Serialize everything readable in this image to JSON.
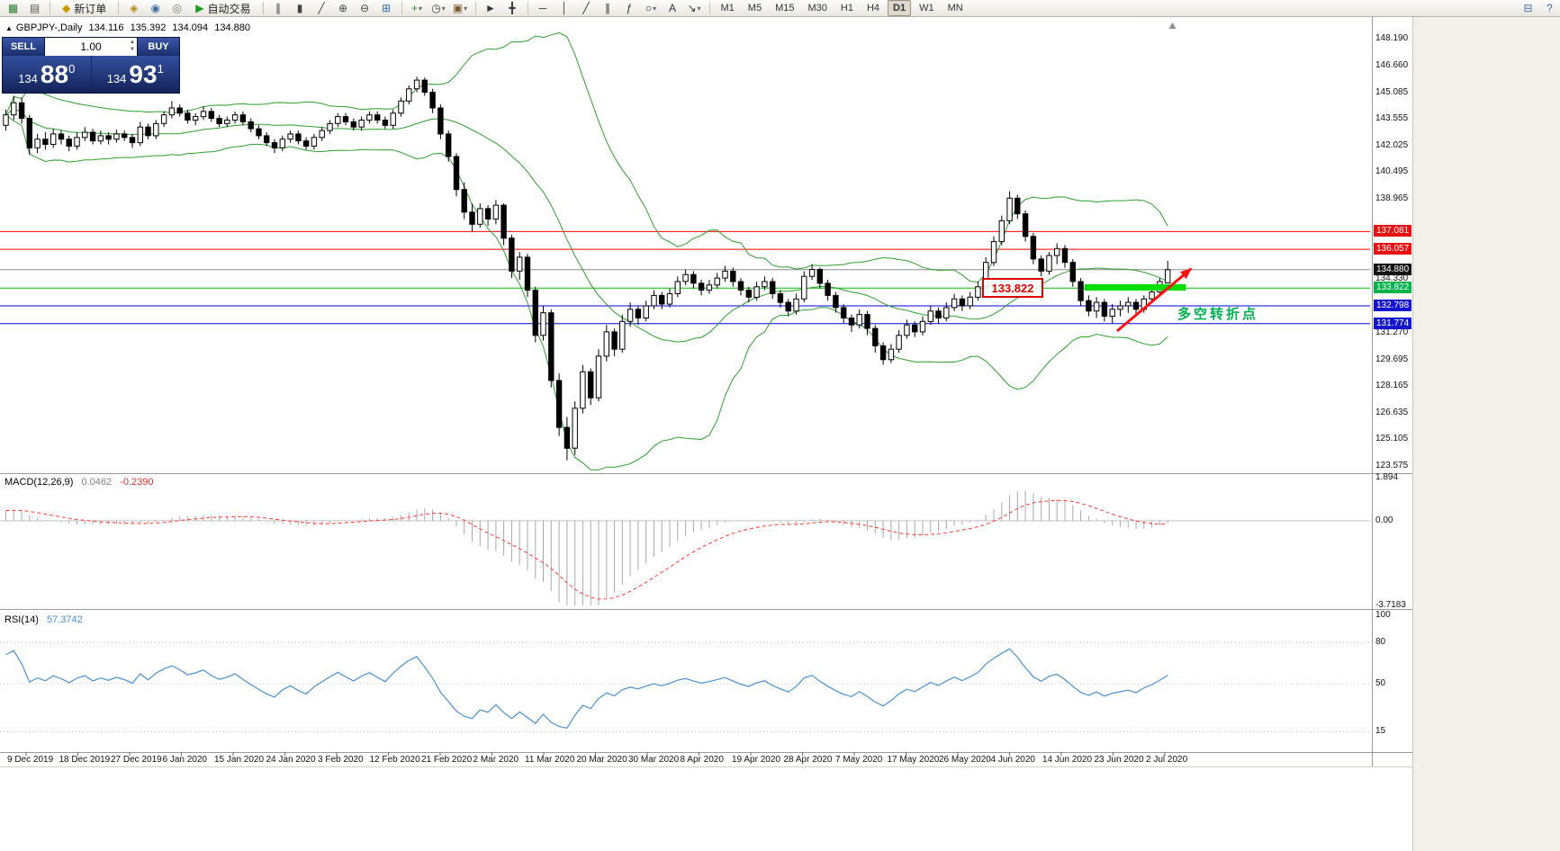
{
  "toolbar": {
    "items": [
      {
        "t": "icon",
        "name": "new-chart",
        "g": "▦",
        "c": "#2b7a2b"
      },
      {
        "t": "icon",
        "name": "profiles",
        "g": "▤",
        "c": "#555555"
      },
      {
        "t": "sep"
      },
      {
        "t": "button",
        "name": "new-order",
        "label": "新订单",
        "g": "◆",
        "c": "#c99700"
      },
      {
        "t": "sep"
      },
      {
        "t": "icon",
        "name": "metaeditor",
        "g": "◈",
        "c": "#b8860b"
      },
      {
        "t": "icon",
        "name": "market",
        "g": "◉",
        "c": "#3a6ea5"
      },
      {
        "t": "icon",
        "name": "alerts",
        "g": "◎",
        "c": "#777777"
      },
      {
        "t": "button",
        "name": "autotrading",
        "label": "自动交易",
        "g": "▶",
        "c": "#18a018"
      },
      {
        "t": "sep"
      },
      {
        "t": "icon",
        "name": "bar-chart-mode",
        "g": "∥",
        "c": "#444444"
      },
      {
        "t": "icon",
        "name": "candlestick-mode",
        "g": "▮",
        "c": "#444444"
      },
      {
        "t": "icon",
        "name": "line-chart-mode",
        "g": "╱",
        "c": "#444444"
      },
      {
        "t": "icon",
        "name": "zoom-in",
        "g": "⊕",
        "c": "#444444"
      },
      {
        "t": "icon",
        "name": "zoom-out",
        "g": "⊖",
        "c": "#444444"
      },
      {
        "t": "icon",
        "name": "tile-windows",
        "g": "⊞",
        "c": "#2b6cb0"
      },
      {
        "t": "sep"
      },
      {
        "t": "icon",
        "name": "indicators",
        "g": "+",
        "c": "#18a018",
        "dd": true
      },
      {
        "t": "icon",
        "name": "periods",
        "g": "◷",
        "c": "#444444",
        "dd": true
      },
      {
        "t": "icon",
        "name": "templates",
        "g": "▣",
        "c": "#7a5c2e",
        "dd": true
      },
      {
        "t": "sep"
      },
      {
        "t": "icon",
        "name": "cursor",
        "g": "►",
        "c": "#333333"
      },
      {
        "t": "icon",
        "name": "crosshair",
        "g": "╋",
        "c": "#333333"
      },
      {
        "t": "sep"
      },
      {
        "t": "icon",
        "name": "horizontal-line",
        "g": "─",
        "c": "#333333"
      },
      {
        "t": "icon",
        "name": "vertical-line",
        "g": "│",
        "c": "#333333"
      },
      {
        "t": "icon",
        "name": "trendline",
        "g": "╱",
        "c": "#333333"
      },
      {
        "t": "icon",
        "name": "channel",
        "g": "∥",
        "c": "#333333"
      },
      {
        "t": "icon",
        "name": "fibonacci",
        "g": "ƒ",
        "c": "#333333"
      },
      {
        "t": "icon",
        "name": "shapes",
        "g": "○",
        "c": "#333333",
        "dd": true
      },
      {
        "t": "icon",
        "name": "text",
        "g": "A",
        "c": "#333333"
      },
      {
        "t": "icon",
        "name": "arrows",
        "g": "↘",
        "c": "#333333",
        "dd": true
      },
      {
        "t": "sep"
      }
    ],
    "right_items": [
      {
        "name": "depth-of-market",
        "g": "⊟",
        "c": "#3a6ea5"
      },
      {
        "name": "help",
        "g": "?",
        "c": "#3a6ea5"
      }
    ],
    "timeframes": [
      "M1",
      "M5",
      "M15",
      "M30",
      "H1",
      "H4",
      "D1",
      "W1",
      "MN"
    ],
    "active_timeframe": "D1"
  },
  "symbol_info": {
    "marker": "▲",
    "title": "GBPJPY-,Daily",
    "open": "134.116",
    "high": "135.392",
    "low": "134.094",
    "close": "134.880"
  },
  "trade_panel": {
    "sell_label": "SELL",
    "buy_label": "BUY",
    "volume": "1.00",
    "bid_small": "134",
    "bid_big": "88",
    "bid_sup": "0",
    "ask_small": "134",
    "ask_big": "93",
    "ask_sup": "1"
  },
  "indicators": {
    "macd_label": "MACD(12,26,9)",
    "macd_value": "0.0462",
    "macd_signal": "-0.2390",
    "rsi_label": "RSI(14)",
    "rsi_value": "57.3742"
  },
  "annotations": {
    "price_box": "133.822",
    "turning_point": "多空转折点"
  },
  "price_scale": {
    "ticks": [
      "148.190",
      "146.660",
      "145.085",
      "143.555",
      "142.025",
      "140.495",
      "138.965",
      "134.330",
      "131.270",
      "129.695",
      "128.165",
      "126.635",
      "125.105",
      "123.575"
    ],
    "line_labels": [
      {
        "text": "137.081",
        "color": "#e81010"
      },
      {
        "text": "136.057",
        "color": "#e81010"
      },
      {
        "text": "134.880",
        "color": "#151515"
      },
      {
        "text": "133.822",
        "color": "#00b44a"
      },
      {
        "text": "132.798",
        "color": "#1515d0"
      },
      {
        "text": "131.774",
        "color": "#1515d0"
      }
    ]
  },
  "macd_scale": [
    "1.894",
    "0.00",
    "-3.7183"
  ],
  "rsi_scale": [
    "100",
    "80",
    "50",
    "15"
  ],
  "date_axis": [
    "9 Dec 2019",
    "18 Dec 2019",
    "27 Dec 2019",
    "6 Jan 2020",
    "15 Jan 2020",
    "24 Jan 2020",
    "3 Feb 2020",
    "12 Feb 2020",
    "21 Feb 2020",
    "2 Mar 2020",
    "11 Mar 2020",
    "20 Mar 2020",
    "30 Mar 2020",
    "8 Apr 2020",
    "19 Apr 2020",
    "28 Apr 2020",
    "7 May 2020",
    "17 May 2020",
    "26 May 2020",
    "4 Jun 2020",
    "14 Jun 2020",
    "23 Jun 2020",
    "2 Jul 2020"
  ],
  "chart_data": {
    "type": "candlestick",
    "symbol": "GBPJPY-",
    "timeframe": "Daily",
    "ohlc_current": {
      "open": 134.116,
      "high": 135.392,
      "low": 134.094,
      "close": 134.88
    },
    "y_axis": {
      "visible_min": 123.575,
      "visible_max": 149.4
    },
    "candles": [
      [
        143.2,
        144.1,
        142.9,
        143.8
      ],
      [
        143.8,
        144.9,
        143.5,
        144.5
      ],
      [
        144.5,
        144.8,
        143.3,
        143.6
      ],
      [
        143.6,
        143.8,
        141.5,
        141.9
      ],
      [
        141.9,
        142.7,
        141.6,
        142.4
      ],
      [
        142.4,
        142.8,
        141.8,
        142.1
      ],
      [
        142.1,
        143.0,
        141.9,
        142.7
      ],
      [
        142.7,
        142.9,
        142.1,
        142.4
      ],
      [
        142.4,
        142.6,
        141.7,
        142.0
      ],
      [
        142.0,
        142.8,
        141.8,
        142.5
      ],
      [
        142.5,
        143.1,
        142.3,
        142.8
      ],
      [
        142.8,
        143.0,
        142.1,
        142.3
      ],
      [
        142.3,
        142.9,
        142.1,
        142.6
      ],
      [
        142.6,
        142.8,
        142.1,
        142.4
      ],
      [
        142.4,
        142.95,
        142.2,
        142.7
      ],
      [
        142.7,
        142.9,
        142.3,
        142.5
      ],
      [
        142.5,
        142.7,
        141.9,
        142.2
      ],
      [
        142.2,
        143.4,
        142.0,
        143.1
      ],
      [
        143.1,
        143.3,
        142.4,
        142.6
      ],
      [
        142.6,
        143.5,
        142.4,
        143.3
      ],
      [
        143.3,
        144.0,
        143.1,
        143.8
      ],
      [
        143.8,
        144.6,
        143.6,
        144.2
      ],
      [
        144.2,
        144.4,
        143.7,
        143.9
      ],
      [
        143.9,
        144.1,
        143.3,
        143.5
      ],
      [
        143.5,
        143.9,
        143.2,
        143.7
      ],
      [
        143.7,
        144.3,
        143.5,
        144.0
      ],
      [
        144.0,
        144.2,
        143.4,
        143.6
      ],
      [
        143.6,
        143.8,
        143.1,
        143.3
      ],
      [
        143.3,
        143.7,
        143.1,
        143.5
      ],
      [
        143.5,
        144.0,
        143.3,
        143.8
      ],
      [
        143.8,
        144.0,
        143.2,
        143.4
      ],
      [
        143.4,
        143.6,
        142.8,
        143.0
      ],
      [
        143.0,
        143.2,
        142.4,
        142.6
      ],
      [
        142.6,
        142.8,
        142.0,
        142.2
      ],
      [
        142.2,
        142.4,
        141.6,
        141.9
      ],
      [
        141.9,
        142.6,
        141.7,
        142.4
      ],
      [
        142.4,
        142.9,
        142.2,
        142.7
      ],
      [
        142.7,
        142.9,
        142.1,
        142.3
      ],
      [
        142.3,
        142.5,
        141.8,
        142.0
      ],
      [
        142.0,
        142.7,
        141.8,
        142.5
      ],
      [
        142.5,
        143.1,
        142.3,
        142.9
      ],
      [
        142.9,
        143.5,
        142.7,
        143.3
      ],
      [
        143.3,
        143.9,
        143.1,
        143.7
      ],
      [
        143.7,
        143.9,
        143.2,
        143.4
      ],
      [
        143.4,
        143.6,
        142.9,
        143.1
      ],
      [
        143.1,
        143.7,
        142.9,
        143.5
      ],
      [
        143.5,
        144.0,
        143.3,
        143.8
      ],
      [
        143.8,
        144.0,
        143.3,
        143.5
      ],
      [
        143.5,
        143.7,
        143.0,
        143.2
      ],
      [
        143.2,
        144.1,
        143.0,
        143.9
      ],
      [
        143.9,
        144.8,
        143.7,
        144.6
      ],
      [
        144.6,
        145.5,
        144.4,
        145.3
      ],
      [
        145.3,
        146.0,
        145.1,
        145.8
      ],
      [
        145.8,
        145.95,
        144.9,
        145.1
      ],
      [
        145.1,
        145.3,
        143.9,
        144.2
      ],
      [
        144.2,
        144.4,
        142.4,
        142.7
      ],
      [
        142.7,
        142.9,
        141.1,
        141.4
      ],
      [
        141.4,
        141.6,
        139.1,
        139.5
      ],
      [
        139.5,
        139.9,
        137.8,
        138.2
      ],
      [
        138.2,
        138.7,
        137.1,
        137.5
      ],
      [
        137.5,
        138.7,
        137.3,
        138.4
      ],
      [
        138.4,
        138.6,
        137.4,
        137.8
      ],
      [
        137.8,
        138.9,
        137.5,
        138.6
      ],
      [
        138.6,
        138.7,
        136.3,
        136.7
      ],
      [
        136.7,
        136.9,
        134.4,
        134.8
      ],
      [
        134.8,
        135.9,
        134.3,
        135.6
      ],
      [
        135.6,
        135.8,
        133.3,
        133.7
      ],
      [
        133.7,
        133.9,
        130.7,
        131.1
      ],
      [
        131.1,
        132.8,
        130.8,
        132.4
      ],
      [
        132.4,
        132.6,
        128.1,
        128.5
      ],
      [
        128.5,
        128.9,
        125.3,
        125.8
      ],
      [
        125.8,
        126.4,
        123.9,
        124.6
      ],
      [
        124.6,
        127.3,
        124.2,
        126.9
      ],
      [
        126.9,
        129.4,
        126.6,
        129.0
      ],
      [
        129.0,
        129.2,
        127.1,
        127.5
      ],
      [
        127.5,
        130.3,
        127.3,
        129.9
      ],
      [
        129.9,
        131.7,
        129.6,
        131.3
      ],
      [
        131.3,
        131.5,
        129.9,
        130.3
      ],
      [
        130.3,
        132.3,
        130.1,
        131.9
      ],
      [
        131.9,
        133.0,
        131.6,
        132.6
      ],
      [
        132.6,
        132.8,
        131.7,
        132.1
      ],
      [
        132.1,
        133.1,
        131.9,
        132.8
      ],
      [
        132.8,
        133.7,
        132.6,
        133.4
      ],
      [
        133.4,
        133.6,
        132.6,
        132.9
      ],
      [
        132.9,
        133.8,
        132.7,
        133.5
      ],
      [
        133.5,
        134.5,
        133.3,
        134.2
      ],
      [
        134.2,
        134.9,
        134.0,
        134.6
      ],
      [
        134.6,
        134.8,
        133.8,
        134.1
      ],
      [
        134.1,
        134.3,
        133.4,
        133.7
      ],
      [
        133.7,
        134.3,
        133.5,
        134.0
      ],
      [
        134.0,
        134.7,
        133.8,
        134.4
      ],
      [
        134.4,
        135.1,
        134.2,
        134.8
      ],
      [
        134.8,
        135.0,
        133.9,
        134.2
      ],
      [
        134.2,
        134.4,
        133.4,
        133.7
      ],
      [
        133.7,
        133.9,
        133.0,
        133.3
      ],
      [
        133.3,
        134.2,
        133.1,
        133.9
      ],
      [
        133.9,
        134.5,
        133.7,
        134.2
      ],
      [
        134.2,
        134.4,
        133.2,
        133.5
      ],
      [
        133.5,
        133.7,
        132.7,
        133.0
      ],
      [
        133.0,
        133.2,
        132.2,
        132.5
      ],
      [
        132.5,
        133.5,
        132.3,
        133.2
      ],
      [
        133.2,
        134.8,
        133.0,
        134.5
      ],
      [
        134.5,
        135.2,
        134.3,
        134.9
      ],
      [
        134.9,
        135.0,
        133.8,
        134.1
      ],
      [
        134.1,
        134.3,
        133.1,
        133.4
      ],
      [
        133.4,
        133.6,
        132.4,
        132.7
      ],
      [
        132.7,
        132.9,
        131.8,
        132.1
      ],
      [
        132.1,
        132.3,
        131.3,
        131.7
      ],
      [
        131.7,
        132.6,
        131.5,
        132.3
      ],
      [
        132.3,
        132.5,
        131.1,
        131.5
      ],
      [
        131.5,
        131.7,
        130.1,
        130.5
      ],
      [
        130.5,
        130.7,
        129.4,
        129.7
      ],
      [
        129.7,
        130.6,
        129.5,
        130.3
      ],
      [
        130.3,
        131.4,
        130.1,
        131.1
      ],
      [
        131.1,
        132.0,
        130.9,
        131.7
      ],
      [
        131.7,
        131.9,
        131.0,
        131.3
      ],
      [
        131.3,
        132.2,
        131.1,
        131.9
      ],
      [
        131.9,
        132.8,
        131.7,
        132.5
      ],
      [
        132.5,
        132.7,
        131.8,
        132.1
      ],
      [
        132.1,
        133.0,
        131.9,
        132.7
      ],
      [
        132.7,
        133.5,
        132.5,
        133.2
      ],
      [
        133.2,
        133.4,
        132.5,
        132.8
      ],
      [
        132.8,
        133.6,
        132.6,
        133.3
      ],
      [
        133.3,
        134.2,
        133.1,
        133.9
      ],
      [
        133.9,
        135.6,
        133.8,
        135.3
      ],
      [
        135.3,
        136.8,
        135.1,
        136.5
      ],
      [
        136.5,
        138.0,
        136.3,
        137.7
      ],
      [
        137.7,
        139.4,
        137.5,
        139.0
      ],
      [
        139.0,
        139.2,
        137.8,
        138.1
      ],
      [
        138.1,
        138.3,
        136.5,
        136.8
      ],
      [
        136.8,
        137.0,
        135.2,
        135.5
      ],
      [
        135.5,
        135.7,
        134.5,
        134.8
      ],
      [
        134.8,
        135.9,
        134.6,
        135.7
      ],
      [
        135.7,
        136.4,
        135.2,
        136.1
      ],
      [
        136.1,
        136.3,
        135.0,
        135.3
      ],
      [
        135.3,
        135.5,
        133.9,
        134.2
      ],
      [
        134.2,
        134.4,
        132.8,
        133.1
      ],
      [
        133.1,
        133.4,
        132.2,
        132.5
      ],
      [
        132.5,
        133.3,
        132.1,
        133.0
      ],
      [
        133.0,
        133.2,
        131.9,
        132.2
      ],
      [
        132.2,
        132.9,
        131.8,
        132.6
      ],
      [
        132.6,
        133.1,
        132.2,
        132.8
      ],
      [
        132.8,
        133.3,
        132.4,
        133.0
      ],
      [
        133.0,
        133.2,
        132.3,
        132.6
      ],
      [
        132.6,
        133.4,
        132.4,
        133.2
      ],
      [
        133.2,
        133.9,
        133.0,
        133.6
      ],
      [
        133.6,
        134.4,
        133.4,
        134.2
      ],
      [
        134.116,
        135.392,
        134.094,
        134.88
      ]
    ],
    "overlays": {
      "bollinger": {
        "period": 20,
        "deviation": 2,
        "color": "#2da02d"
      }
    },
    "hlines": [
      {
        "price": 137.081,
        "color": "#ff0000"
      },
      {
        "price": 136.057,
        "color": "#ff0000"
      },
      {
        "price": 134.88,
        "color": "#8c8c8c"
      },
      {
        "price": 133.822,
        "color": "#00c000"
      },
      {
        "price": 132.798,
        "color": "#0000e0"
      },
      {
        "price": 131.774,
        "color": "#0000e0"
      }
    ],
    "objects": {
      "green_band": {
        "from_bar": 136.5,
        "to_bar": 149.3,
        "price": 133.86,
        "thickness": 7,
        "color": "#00dd00"
      },
      "arrow": {
        "from_bar": 140.6,
        "from_price": 131.35,
        "to_bar": 150.0,
        "to_price": 134.95,
        "color": "#ff1010"
      },
      "shift_marker_bar": 147.6
    },
    "macd": {
      "fast": 12,
      "slow": 26,
      "signal": 9,
      "range": [
        -3.7183,
        1.894
      ],
      "histogram_color": "#a8a8a8",
      "signal_color": "#ff3b30"
    },
    "rsi": {
      "period": 14,
      "levels": [
        80,
        50,
        15
      ],
      "color": "#4a90d2",
      "current": 57.3742
    }
  }
}
